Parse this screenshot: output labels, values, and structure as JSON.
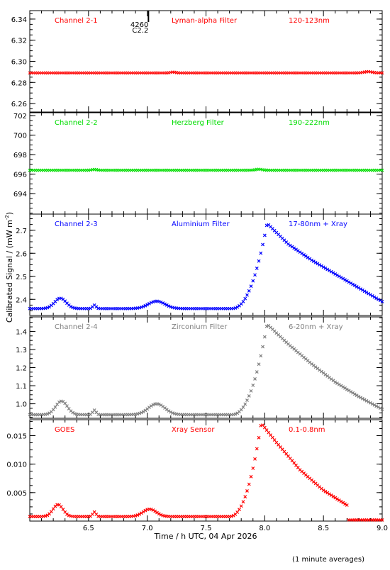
{
  "xlabel": "Time / h UTC, 04 Apr 2026",
  "ylabel": "Calibrated Signal / (mW m",
  "ylabel_sup": "-2",
  "ylabel_close": ")",
  "footnote": "(1 minute averages)",
  "flare_marker": {
    "x": 7.01,
    "label_top": "4260",
    "label_bottom": "C2.2"
  },
  "chart_data": [
    {
      "type": "scatter",
      "name": "Channel 2-1",
      "filter": "Lyman-alpha Filter",
      "band": "120-123nm",
      "color": "#ff0000",
      "xlim": [
        6.0,
        9.0
      ],
      "ylim": [
        6.252,
        6.348
      ],
      "yticks": [
        6.26,
        6.28,
        6.3,
        6.32,
        6.34
      ],
      "ytick_labels": [
        "6.26",
        "6.28",
        "6.30",
        "6.32",
        "6.34"
      ],
      "shape": {
        "kind": "flat",
        "level": 6.289,
        "bumps": [
          [
            7.22,
            0.0008,
            0.03
          ],
          [
            8.88,
            0.0012,
            0.05
          ]
        ]
      }
    },
    {
      "type": "scatter",
      "name": "Channel 2-2",
      "filter": "Herzberg Filter",
      "band": "190-222nm",
      "color": "#00dd00",
      "xlim": [
        6.0,
        9.0
      ],
      "ylim": [
        691.9,
        702.3
      ],
      "yticks": [
        694,
        696,
        698,
        700,
        702
      ],
      "ytick_labels": [
        "694",
        "696",
        "698",
        "700",
        "702"
      ],
      "shape": {
        "kind": "flat",
        "level": 696.4,
        "bumps": [
          [
            6.55,
            0.08,
            0.03
          ],
          [
            7.95,
            0.1,
            0.04
          ]
        ]
      }
    },
    {
      "type": "scatter",
      "name": "Channel 2-3",
      "filter": "Aluminium Filter",
      "band": "17-80nm + Xray",
      "color": "#0000ff",
      "xlim": [
        6.0,
        9.0
      ],
      "ylim": [
        2.33,
        2.77
      ],
      "yticks": [
        2.4,
        2.5,
        2.6,
        2.7
      ],
      "ytick_labels": [
        "2.4",
        "2.5",
        "2.6",
        "2.7"
      ],
      "shape": {
        "kind": "flare",
        "base": 2.36,
        "bumps": [
          [
            6.26,
            0.045,
            0.07
          ],
          [
            6.55,
            0.015,
            0.02
          ],
          [
            7.08,
            0.032,
            0.1
          ]
        ],
        "rise_start": 7.72,
        "peak_x": 8.02,
        "peak_y": 2.73,
        "decay_pts": [
          [
            8.02,
            2.73
          ],
          [
            8.2,
            2.64
          ],
          [
            8.4,
            2.57
          ],
          [
            8.6,
            2.51
          ],
          [
            8.8,
            2.45
          ],
          [
            9.0,
            2.39
          ]
        ]
      }
    },
    {
      "type": "scatter",
      "name": "Channel 2-4",
      "filter": "Zirconium Filter",
      "band": "6-20nm + Xray",
      "color": "#808080",
      "xlim": [
        6.0,
        9.0
      ],
      "ylim": [
        0.92,
        1.48
      ],
      "yticks": [
        1.0,
        1.1,
        1.2,
        1.3,
        1.4
      ],
      "ytick_labels": [
        "1.0",
        "1.1",
        "1.2",
        "1.3",
        "1.4"
      ],
      "shape": {
        "kind": "flare",
        "base": 0.94,
        "bumps": [
          [
            6.27,
            0.075,
            0.07
          ],
          [
            6.55,
            0.025,
            0.02
          ],
          [
            7.08,
            0.06,
            0.1
          ]
        ],
        "rise_start": 7.72,
        "peak_x": 8.02,
        "peak_y": 1.44,
        "decay_pts": [
          [
            8.02,
            1.44
          ],
          [
            8.2,
            1.33
          ],
          [
            8.4,
            1.22
          ],
          [
            8.6,
            1.12
          ],
          [
            8.8,
            1.04
          ],
          [
            9.0,
            0.97
          ]
        ]
      }
    },
    {
      "type": "scatter",
      "name": "GOES",
      "filter": "Xray Sensor",
      "band": "0.1-0.8nm",
      "color": "#ff0000",
      "xlim": [
        6.0,
        9.0
      ],
      "ylim": [
        0.0,
        0.0178
      ],
      "yticks": [
        0.005,
        0.01,
        0.015
      ],
      "ytick_labels": [
        "0.005",
        "0.010",
        "0.015"
      ],
      "shape": {
        "kind": "flare",
        "base": 0.0008,
        "bumps": [
          [
            6.24,
            0.0021,
            0.06
          ],
          [
            6.55,
            0.0008,
            0.02
          ],
          [
            7.02,
            0.0013,
            0.08
          ]
        ],
        "rise_start": 7.7,
        "peak_x": 7.97,
        "peak_y": 0.0172,
        "decay_pts": [
          [
            7.97,
            0.0172
          ],
          [
            8.1,
            0.0138
          ],
          [
            8.3,
            0.009
          ],
          [
            8.5,
            0.0054
          ],
          [
            8.7,
            0.0028
          ]
        ],
        "cutoff_x": 8.7,
        "tail_level": 0.0002
      }
    }
  ]
}
